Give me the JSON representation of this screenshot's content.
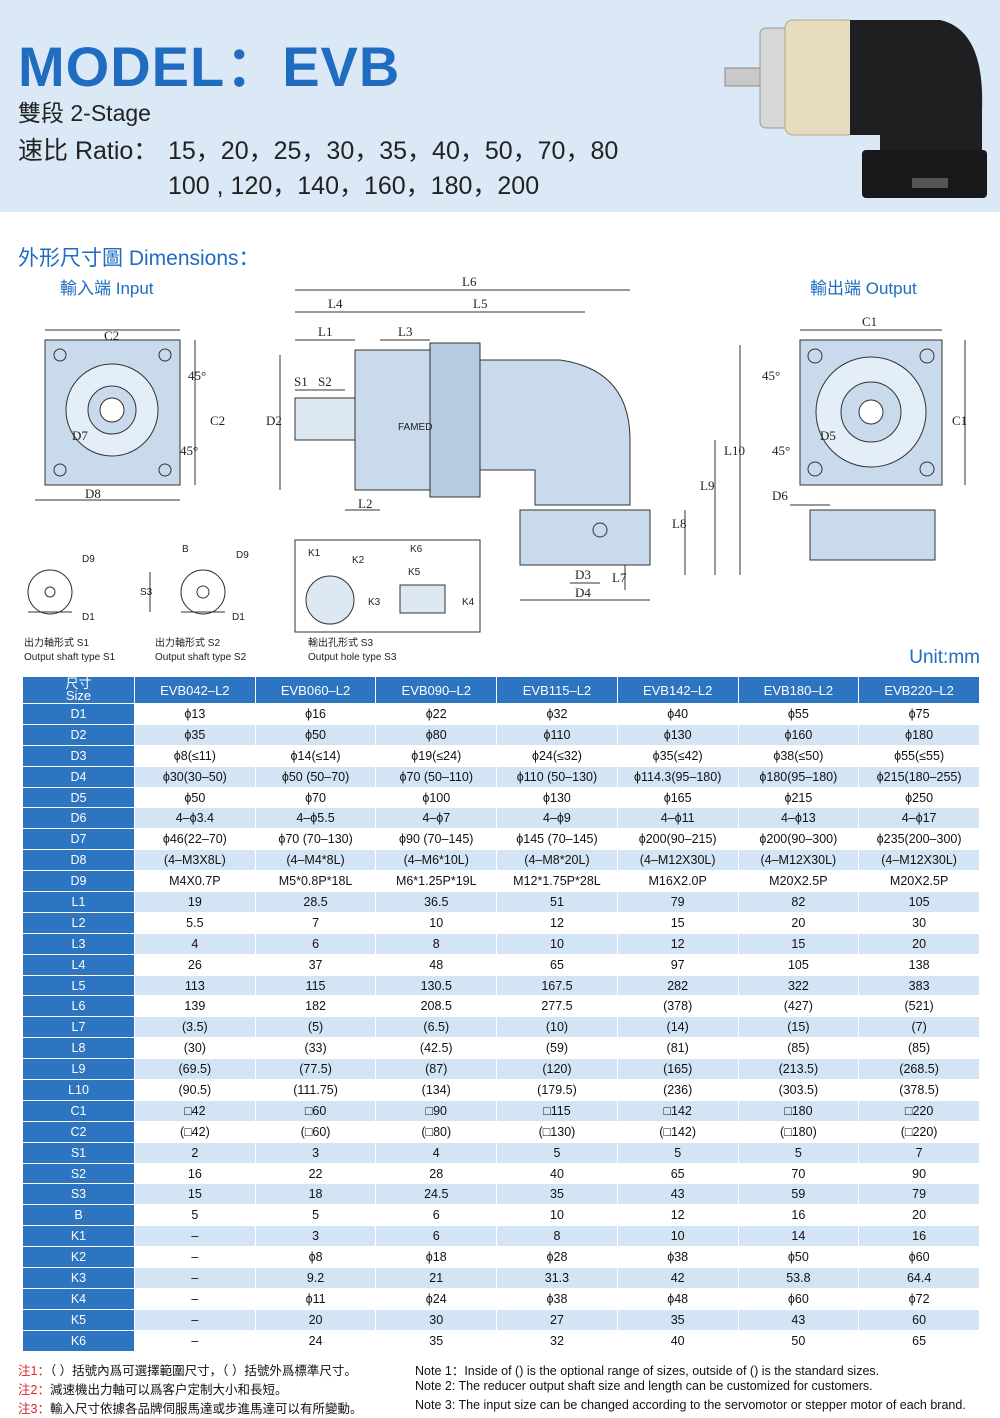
{
  "header": {
    "title": "MODEL：EVB",
    "stage": "雙段 2-Stage",
    "ratio_label": "速比 Ratio：",
    "ratio_line1": "15，20，25，30，35，40，50，70，80",
    "ratio_line2": "100 , 120，140，160，180，200"
  },
  "dimensions_title": "外形尺寸圖 Dimensions：",
  "drawing": {
    "input": "輸入端 Input",
    "output": "輸出端 Output",
    "brand": "FAMED",
    "labels": [
      "L6",
      "L4",
      "L5",
      "L1",
      "L3",
      "S1",
      "S2",
      "D2",
      "L2",
      "L10",
      "L9",
      "L8",
      "D3",
      "L7",
      "D4",
      "C2",
      "C2",
      "45°",
      "45°",
      "D7",
      "D8",
      "C1",
      "C1",
      "45°",
      "45°",
      "D5",
      "D6",
      "D9",
      "D1",
      "B",
      "D9",
      "S3",
      "D1",
      "K1",
      "K2",
      "K6",
      "K5",
      "K3",
      "K4"
    ]
  },
  "shaft_types": [
    {
      "zh": "出力軸形式 S1",
      "en": "Output shaft type S1"
    },
    {
      "zh": "出力軸形式 S2",
      "en": "Output shaft type S2"
    },
    {
      "zh": "輸出孔形式 S3",
      "en": "Output hole type S3"
    }
  ],
  "unit": "Unit:mm",
  "table": {
    "corner": [
      "尺寸",
      "Size"
    ],
    "columns": [
      "EVB042–L2",
      "EVB060–L2",
      "EVB090–L2",
      "EVB115–L2",
      "EVB142–L2",
      "EVB180–L2",
      "EVB220–L2"
    ],
    "rows": [
      [
        "D1",
        "ϕ13",
        "ϕ16",
        "ϕ22",
        "ϕ32",
        "ϕ40",
        "ϕ55",
        "ϕ75"
      ],
      [
        "D2",
        "ϕ35",
        "ϕ50",
        "ϕ80",
        "ϕ110",
        "ϕ130",
        "ϕ160",
        "ϕ180"
      ],
      [
        "D3",
        "ϕ8(≤11)",
        "ϕ14(≤14)",
        "ϕ19(≤24)",
        "ϕ24(≤32)",
        "ϕ35(≤42)",
        "ϕ38(≤50)",
        "ϕ55(≤55)"
      ],
      [
        "D4",
        "ϕ30(30–50)",
        "ϕ50 (50–70)",
        "ϕ70 (50–110)",
        "ϕ110 (50–130)",
        "ϕ114.3(95–180)",
        "ϕ180(95–180)",
        "ϕ215(180–255)"
      ],
      [
        "D5",
        "ϕ50",
        "ϕ70",
        "ϕ100",
        "ϕ130",
        "ϕ165",
        "ϕ215",
        "ϕ250"
      ],
      [
        "D6",
        "4–ϕ3.4",
        "4–ϕ5.5",
        "4–ϕ7",
        "4–ϕ9",
        "4–ϕ11",
        "4–ϕ13",
        "4–ϕ17"
      ],
      [
        "D7",
        "ϕ46(22–70)",
        "ϕ70 (70–130)",
        "ϕ90 (70–145)",
        "ϕ145 (70–145)",
        "ϕ200(90–215)",
        "ϕ200(90–300)",
        "ϕ235(200–300)"
      ],
      [
        "D8",
        "(4–M3X8L)",
        "(4–M4*8L)",
        "(4–M6*10L)",
        "(4–M8*20L)",
        "(4–M12X30L)",
        "(4–M12X30L)",
        "(4–M12X30L)"
      ],
      [
        "D9",
        "M4X0.7P",
        "M5*0.8P*18L",
        "M6*1.25P*19L",
        "M12*1.75P*28L",
        "M16X2.0P",
        "M20X2.5P",
        "M20X2.5P"
      ],
      [
        "L1",
        "19",
        "28.5",
        "36.5",
        "51",
        "79",
        "82",
        "105"
      ],
      [
        "L2",
        "5.5",
        "7",
        "10",
        "12",
        "15",
        "20",
        "30"
      ],
      [
        "L3",
        "4",
        "6",
        "8",
        "10",
        "12",
        "15",
        "20"
      ],
      [
        "L4",
        "26",
        "37",
        "48",
        "65",
        "97",
        "105",
        "138"
      ],
      [
        "L5",
        "113",
        "115",
        "130.5",
        "167.5",
        "282",
        "322",
        "383"
      ],
      [
        "L6",
        "139",
        "182",
        "208.5",
        "277.5",
        "(378)",
        "(427)",
        "(521)"
      ],
      [
        "L7",
        "(3.5)",
        "(5)",
        "(6.5)",
        "(10)",
        "(14)",
        "(15)",
        "(7)"
      ],
      [
        "L8",
        "(30)",
        "(33)",
        "(42.5)",
        "(59)",
        "(81)",
        "(85)",
        "(85)"
      ],
      [
        "L9",
        "(69.5)",
        "(77.5)",
        "(87)",
        "(120)",
        "(165)",
        "(213.5)",
        "(268.5)"
      ],
      [
        "L10",
        "(90.5)",
        "(111.75)",
        "(134)",
        "(179.5)",
        "(236)",
        "(303.5)",
        "(378.5)"
      ],
      [
        "C1",
        "□42",
        "□60",
        "□90",
        "□115",
        "□142",
        "□180",
        "□220"
      ],
      [
        "C2",
        "(□42)",
        "(□60)",
        "(□80)",
        "(□130)",
        "(□142)",
        "(□180)",
        "(□220)"
      ],
      [
        "S1",
        "2",
        "3",
        "4",
        "5",
        "5",
        "5",
        "7"
      ],
      [
        "S2",
        "16",
        "22",
        "28",
        "40",
        "65",
        "70",
        "90"
      ],
      [
        "S3",
        "15",
        "18",
        "24.5",
        "35",
        "43",
        "59",
        "79"
      ],
      [
        "B",
        "5",
        "5",
        "6",
        "10",
        "12",
        "16",
        "20"
      ],
      [
        "K1",
        "–",
        "3",
        "6",
        "8",
        "10",
        "14",
        "16"
      ],
      [
        "K2",
        "–",
        "ϕ8",
        "ϕ18",
        "ϕ28",
        "ϕ38",
        "ϕ50",
        "ϕ60"
      ],
      [
        "K3",
        "–",
        "9.2",
        "21",
        "31.3",
        "42",
        "53.8",
        "64.4"
      ],
      [
        "K4",
        "–",
        "ϕ11",
        "ϕ24",
        "ϕ38",
        "ϕ48",
        "ϕ60",
        "ϕ72"
      ],
      [
        "K5",
        "–",
        "20",
        "30",
        "27",
        "35",
        "43",
        "60"
      ],
      [
        "K6",
        "–",
        "24",
        "35",
        "32",
        "40",
        "50",
        "65"
      ]
    ]
  },
  "notes": {
    "zh": [
      {
        "label": "注1：",
        "text": "（ ）括號內爲可選擇範圍尺寸，（ ）括號外爲標準尺寸。"
      },
      {
        "label": "注2：",
        "text": "減速機出力軸可以爲客户定制大小和長短。"
      },
      {
        "label": "注3：",
        "text": "輸入尺寸依據各品牌伺服馬達或步進馬達可以有所變動。"
      }
    ],
    "en": [
      "Note 1：Inside of () is the optional range of sizes, outside of () is the standard sizes.",
      "Note 2: The reducer output shaft size and length can be customized for customers.",
      "Note 3: The input size can be changed according to the servomotor or stepper motor of each brand."
    ]
  }
}
